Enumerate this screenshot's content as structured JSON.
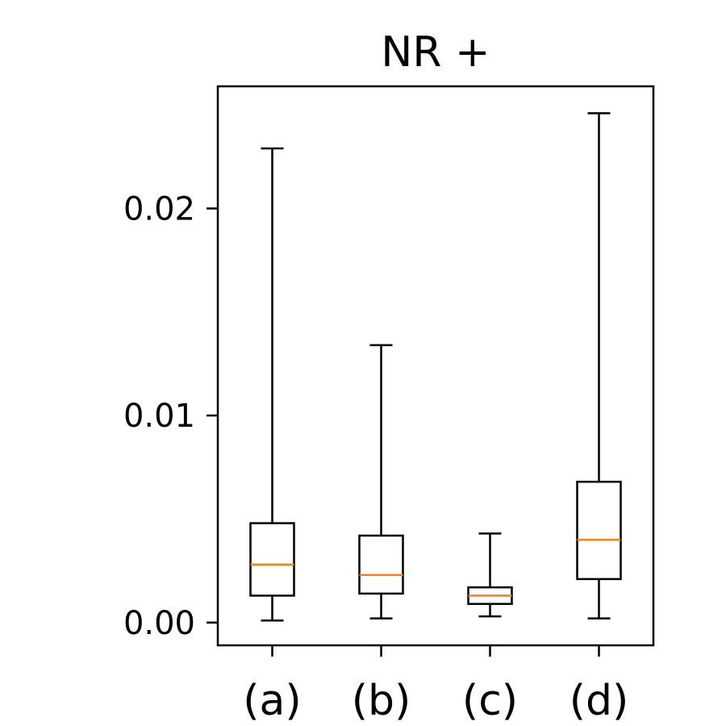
{
  "chart_data": {
    "type": "box",
    "title": "NR +",
    "xlabel": "",
    "ylabel": "",
    "categories": [
      "(a)",
      "(b)",
      "(c)",
      "(d)"
    ],
    "ylim": [
      -0.0011,
      0.0259
    ],
    "yticks": [
      {
        "value": 0.0,
        "label": "0.00"
      },
      {
        "value": 0.01,
        "label": "0.01"
      },
      {
        "value": 0.02,
        "label": "0.02"
      }
    ],
    "boxes": [
      {
        "whisker_low": 0.0001,
        "q1": 0.0013,
        "median": 0.0028,
        "q3": 0.0048,
        "whisker_high": 0.0229
      },
      {
        "whisker_low": 0.0002,
        "q1": 0.0014,
        "median": 0.0023,
        "q3": 0.0042,
        "whisker_high": 0.0134
      },
      {
        "whisker_low": 0.0003,
        "q1": 0.0009,
        "median": 0.0013,
        "q3": 0.0017,
        "whisker_high": 0.0043
      },
      {
        "whisker_low": 0.0002,
        "q1": 0.0021,
        "median": 0.004,
        "q3": 0.0068,
        "whisker_high": 0.0246
      }
    ],
    "grid": false,
    "colors": {
      "box": "#000000",
      "median": "#ff7f0e"
    }
  }
}
